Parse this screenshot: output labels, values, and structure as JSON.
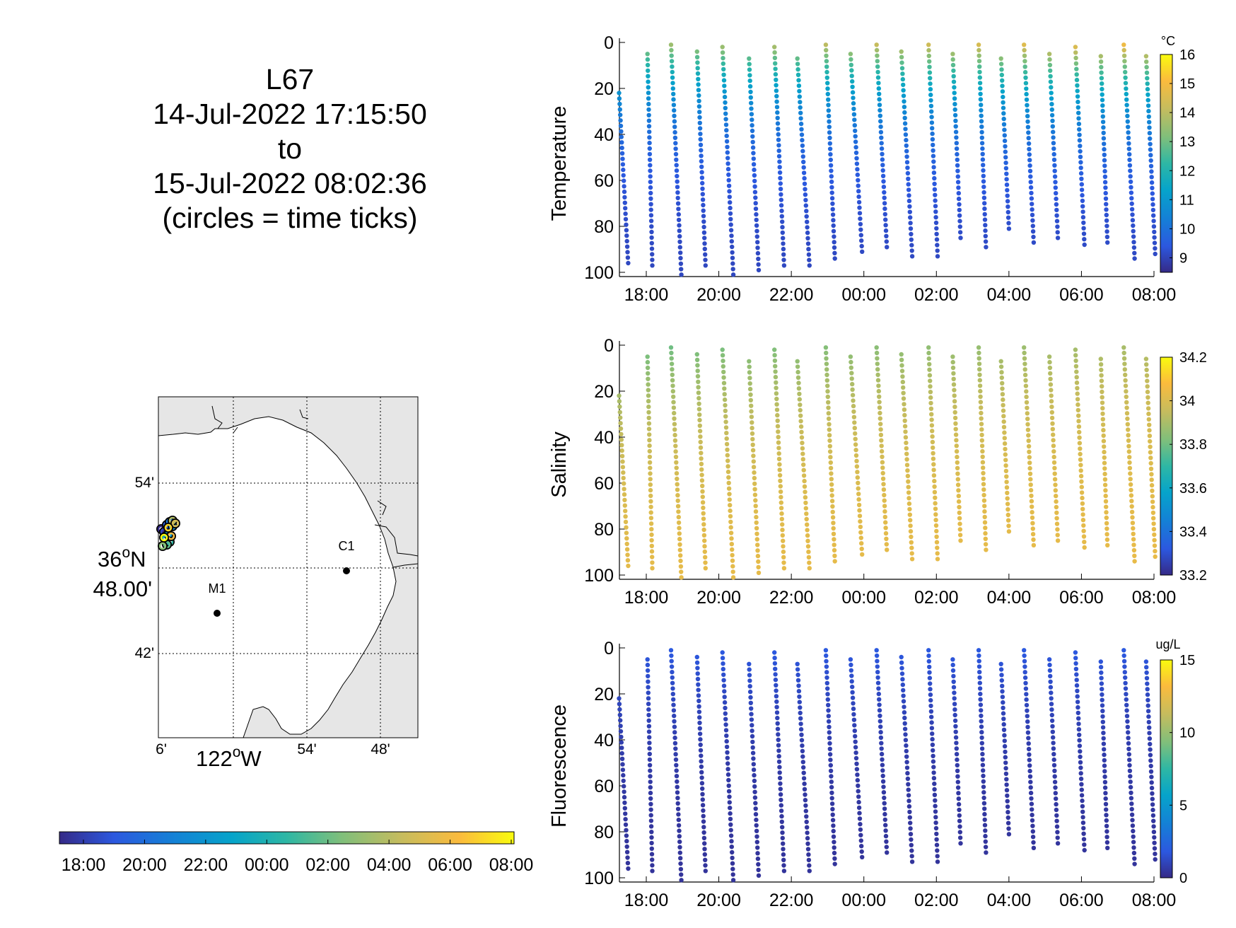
{
  "header": {
    "lines": [
      "L67",
      "14-Jul-2022 17:15:50",
      "to",
      "15-Jul-2022 08:02:36",
      "(circles = time ticks)"
    ]
  },
  "map": {
    "lat_labels": [
      "54'",
      "36",
      "N",
      "48.00'",
      "42'"
    ],
    "lon_labels": [
      "6'",
      "122",
      "W",
      "54'",
      "48'"
    ],
    "degree_symbol": "o",
    "stations": [
      {
        "name": "C1",
        "lon": -121.844,
        "lat": 36.798
      },
      {
        "name": "M1",
        "lon": -122.03,
        "lat": 36.749
      }
    ],
    "colors": {
      "land": "#e6e6e6",
      "water": "#ffffff"
    }
  },
  "time_colorbar": {
    "ticks": [
      "18:00",
      "20:00",
      "22:00",
      "00:00",
      "02:00",
      "04:00",
      "06:00",
      "08:00"
    ],
    "colormap": "parula"
  },
  "chart_data": [
    {
      "type": "scatter",
      "ylabel": "Temperature",
      "x_ticks": [
        "18:00",
        "20:00",
        "22:00",
        "00:00",
        "02:00",
        "04:00",
        "06:00",
        "08:00"
      ],
      "y_ticks": [
        "0",
        "20",
        "40",
        "60",
        "80",
        "100"
      ],
      "ylim": [
        100,
        0
      ],
      "colorbar": {
        "unit": "°C",
        "ticks": [
          "16",
          "15",
          "14",
          "13",
          "12",
          "11",
          "10",
          "9"
        ],
        "range": [
          8.5,
          16
        ]
      },
      "profiles": [
        {
          "t_start": "17:15",
          "t_end": "17:30",
          "depth_top": 22,
          "depth_bottom": 96
        },
        {
          "t_start": "18:02",
          "t_end": "18:10",
          "depth_top": 5,
          "depth_bottom": 97
        },
        {
          "t_start": "18:41",
          "t_end": "18:58",
          "depth_top": 1,
          "depth_bottom": 101
        },
        {
          "t_start": "19:24",
          "t_end": "19:38",
          "depth_top": 4,
          "depth_bottom": 97
        },
        {
          "t_start": "20:06",
          "t_end": "20:24",
          "depth_top": 2,
          "depth_bottom": 101
        },
        {
          "t_start": "20:50",
          "t_end": "21:06",
          "depth_top": 7,
          "depth_bottom": 99
        },
        {
          "t_start": "21:32",
          "t_end": "21:48",
          "depth_top": 2,
          "depth_bottom": 97
        },
        {
          "t_start": "22:10",
          "t_end": "22:30",
          "depth_top": 7,
          "depth_bottom": 97
        },
        {
          "t_start": "22:57",
          "t_end": "23:12",
          "depth_top": 1,
          "depth_bottom": 94
        },
        {
          "t_start": "23:38",
          "t_end": "23:57",
          "depth_top": 5,
          "depth_bottom": 91
        },
        {
          "t_start": "00:21",
          "t_end": "00:38",
          "depth_top": 1,
          "depth_bottom": 89
        },
        {
          "t_start": "01:02",
          "t_end": "01:20",
          "depth_top": 4,
          "depth_bottom": 93
        },
        {
          "t_start": "01:47",
          "t_end": "02:02",
          "depth_top": 1,
          "depth_bottom": 93
        },
        {
          "t_start": "02:27",
          "t_end": "02:40",
          "depth_top": 5,
          "depth_bottom": 85
        },
        {
          "t_start": "03:10",
          "t_end": "03:22",
          "depth_top": 1,
          "depth_bottom": 89
        },
        {
          "t_start": "03:47",
          "t_end": "04:00",
          "depth_top": 7,
          "depth_bottom": 81
        },
        {
          "t_start": "04:25",
          "t_end": "04:41",
          "depth_top": 1,
          "depth_bottom": 87
        },
        {
          "t_start": "05:07",
          "t_end": "05:21",
          "depth_top": 5,
          "depth_bottom": 85
        },
        {
          "t_start": "05:50",
          "t_end": "06:05",
          "depth_top": 2,
          "depth_bottom": 88
        },
        {
          "t_start": "06:32",
          "t_end": "06:43",
          "depth_top": 6,
          "depth_bottom": 87
        },
        {
          "t_start": "07:10",
          "t_end": "07:28",
          "depth_top": 1,
          "depth_bottom": 94
        },
        {
          "t_start": "07:47",
          "t_end": "08:02",
          "depth_top": 6,
          "depth_bottom": 92
        }
      ]
    },
    {
      "type": "scatter",
      "ylabel": "Salinity",
      "x_ticks": [
        "18:00",
        "20:00",
        "22:00",
        "00:00",
        "02:00",
        "04:00",
        "06:00",
        "08:00"
      ],
      "y_ticks": [
        "0",
        "20",
        "40",
        "60",
        "80",
        "100"
      ],
      "ylim": [
        100,
        0
      ],
      "colorbar": {
        "unit": "",
        "ticks": [
          "34.2",
          "34",
          "33.8",
          "33.6",
          "33.4",
          "33.2"
        ],
        "range": [
          33.2,
          34.2
        ]
      },
      "profiles": "same as Temperature"
    },
    {
      "type": "scatter",
      "ylabel": "Fluorescence",
      "x_ticks": [
        "18:00",
        "20:00",
        "22:00",
        "00:00",
        "02:00",
        "04:00",
        "06:00",
        "08:00"
      ],
      "y_ticks": [
        "0",
        "20",
        "40",
        "60",
        "80",
        "100"
      ],
      "ylim": [
        100,
        0
      ],
      "colorbar": {
        "unit": "ug/L",
        "ticks": [
          "15",
          "10",
          "5",
          "0"
        ],
        "range": [
          0,
          15
        ]
      },
      "profiles": "same as Temperature"
    }
  ]
}
